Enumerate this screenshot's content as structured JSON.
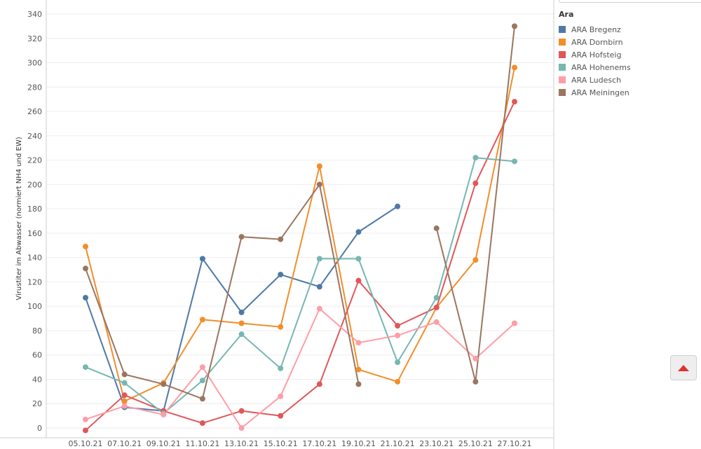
{
  "legend_title": "Ara",
  "chart_data": {
    "type": "line",
    "title": "",
    "xlabel": "",
    "ylabel": "Virustiter im Abwasser (normiert NH4 und EW)",
    "ylim": [
      -10,
      345
    ],
    "y_ticks": [
      0,
      20,
      40,
      60,
      80,
      100,
      120,
      140,
      160,
      180,
      200,
      220,
      240,
      260,
      280,
      300,
      320,
      340
    ],
    "categories": [
      "05.10.21",
      "07.10.21",
      "09.10.21",
      "11.10.21",
      "13.10.21",
      "15.10.21",
      "17.10.21",
      "19.10.21",
      "21.10.21",
      "23.10.21",
      "25.10.21",
      "27.10.21"
    ],
    "grid": "horizontal",
    "legend_position": "right",
    "series": [
      {
        "name": "ARA Bregenz",
        "color": "#4e79a7",
        "values": [
          107,
          17,
          14,
          139,
          95,
          126,
          116,
          161,
          182,
          null,
          null,
          null
        ]
      },
      {
        "name": "ARA Dornbirn",
        "color": "#f28e2b",
        "values": [
          149,
          22,
          37,
          89,
          86,
          83,
          215,
          48,
          38,
          99,
          138,
          296
        ]
      },
      {
        "name": "ARA Hofsteig",
        "color": "#e15759",
        "values": [
          -2,
          27,
          14,
          4,
          14,
          10,
          36,
          121,
          84,
          99,
          201,
          268
        ]
      },
      {
        "name": "ARA Hohenems",
        "color": "#76b7b2",
        "values": [
          50,
          37,
          12,
          39,
          77,
          49,
          139,
          139,
          54,
          107,
          222,
          219
        ]
      },
      {
        "name": "ARA Ludesch",
        "color": "#ff9da7",
        "values": [
          7,
          18,
          11,
          50,
          0,
          26,
          98,
          70,
          76,
          87,
          57,
          86
        ]
      },
      {
        "name": "ARA Meiningen",
        "color": "#9c755f",
        "values": [
          131,
          44,
          36,
          24,
          157,
          155,
          200,
          36,
          null,
          164,
          38,
          330
        ]
      }
    ]
  }
}
